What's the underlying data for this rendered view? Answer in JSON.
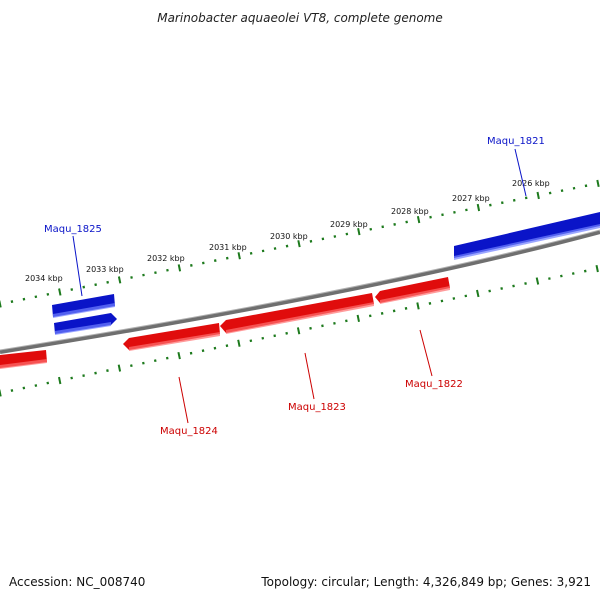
{
  "title": "Marinobacter aquaeolei VT8, complete genome",
  "colors": {
    "forward_gene": "#0a14c8",
    "reverse_gene": "#e00c0c",
    "backbone": "#8a8a8a",
    "ticks": "#1d7a1d",
    "title_text": "#222222"
  },
  "ruler_labels": [
    "2026 kbp",
    "2027 kbp",
    "2028 kbp",
    "2029 kbp",
    "2030 kbp",
    "2031 kbp",
    "2032 kbp",
    "2033 kbp",
    "2034 kbp"
  ],
  "genes": [
    {
      "label": "Maqu_1821",
      "strand": "forward"
    },
    {
      "label": "Maqu_1825",
      "strand": "forward"
    },
    {
      "label": "Maqu_1822",
      "strand": "reverse"
    },
    {
      "label": "Maqu_1823",
      "strand": "reverse"
    },
    {
      "label": "Maqu_1824",
      "strand": "reverse"
    }
  ],
  "footer": {
    "accession": "Accession: NC_008740",
    "summary": "Topology: circular; Length: 4,326,849 bp; Genes: 3,921"
  }
}
